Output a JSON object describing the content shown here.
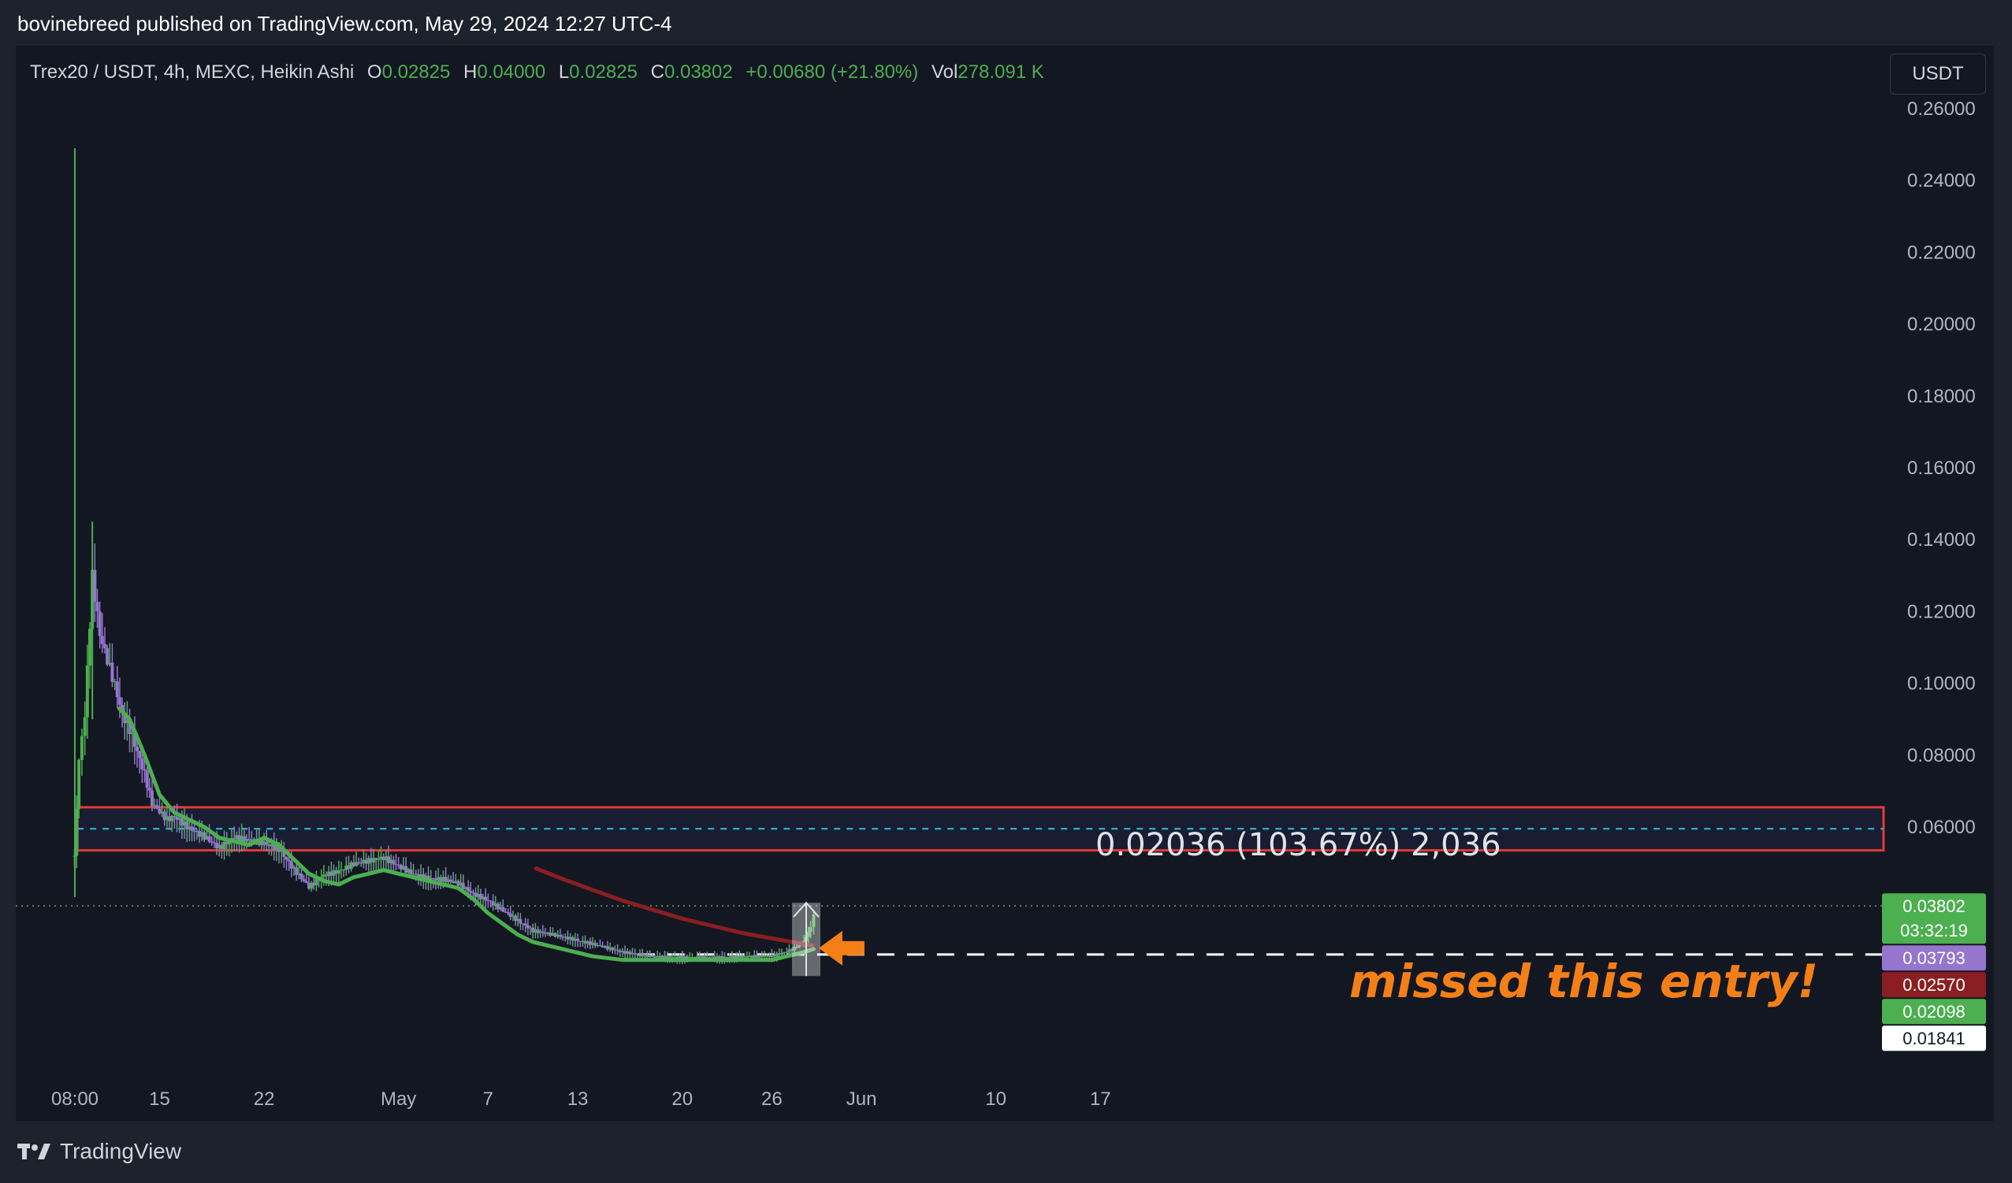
{
  "header": {
    "publish_text": "bovinebreed published on TradingView.com, May 29, 2024 12:27 UTC-4"
  },
  "legend": {
    "symbol": "Trex20 / USDT, 4h, MEXC, Heikin Ashi",
    "o_label": "O",
    "o_value": "0.02825",
    "h_label": "H",
    "h_value": "0.04000",
    "l_label": "L",
    "l_value": "0.02825",
    "c_label": "C",
    "c_value": "0.03802",
    "change": "+0.00680 (+21.80%)",
    "vol_label": "Vol",
    "vol_value": "278.091 K"
  },
  "currency_button": "USDT",
  "footer": {
    "brand": "TradingView"
  },
  "colors": {
    "background": "#131722",
    "up": "#4caf50",
    "down": "#9575cd",
    "ma_fast": "#4caf50",
    "ma_slow": "#8b1e22",
    "zone": "#e53935",
    "annotation": "#f57f17"
  },
  "annotations": {
    "measure": "0.02036 (103.67%) 2,036",
    "missed": "missed this entry!"
  },
  "chart_data": {
    "type": "candlestick",
    "style": "heikin_ashi",
    "symbol": "Trex20 / USDT",
    "interval": "4h",
    "exchange": "MEXC",
    "ylim": [
      0.0,
      0.262
    ],
    "y_ticks": [
      "0.06000",
      "0.08000",
      "0.10000",
      "0.12000",
      "0.14000",
      "0.16000",
      "0.18000",
      "0.20000",
      "0.22000",
      "0.24000",
      "0.26000"
    ],
    "y_tick_values": [
      0.06,
      0.08,
      0.1,
      0.12,
      0.14,
      0.16,
      0.18,
      0.2,
      0.22,
      0.24,
      0.26
    ],
    "x_ticks": [
      {
        "label": "08:00",
        "day": 9.33
      },
      {
        "label": "15",
        "day": 15
      },
      {
        "label": "22",
        "day": 22
      },
      {
        "label": "May",
        "day": 31
      },
      {
        "label": "7",
        "day": 37
      },
      {
        "label": "13",
        "day": 43
      },
      {
        "label": "20",
        "day": 50
      },
      {
        "label": "26",
        "day": 56
      },
      {
        "label": "Jun",
        "day": 62
      },
      {
        "label": "10",
        "day": 71
      },
      {
        "label": "17",
        "day": 78
      }
    ],
    "price_series": [
      [
        9.3,
        0.052
      ],
      [
        9.6,
        0.078
      ],
      [
        10.0,
        0.09
      ],
      [
        10.5,
        0.128
      ],
      [
        11.0,
        0.112
      ],
      [
        11.5,
        0.105
      ],
      [
        12.0,
        0.098
      ],
      [
        12.5,
        0.09
      ],
      [
        13.0,
        0.086
      ],
      [
        13.5,
        0.08
      ],
      [
        14.0,
        0.074
      ],
      [
        14.5,
        0.066
      ],
      [
        15.0,
        0.064
      ],
      [
        15.5,
        0.062
      ],
      [
        16.0,
        0.063
      ],
      [
        17.0,
        0.06
      ],
      [
        18.0,
        0.058
      ],
      [
        19.0,
        0.055
      ],
      [
        20.0,
        0.058
      ],
      [
        21.0,
        0.057
      ],
      [
        22.0,
        0.056
      ],
      [
        23.0,
        0.054
      ],
      [
        24.0,
        0.048
      ],
      [
        25.0,
        0.043
      ],
      [
        26.0,
        0.046
      ],
      [
        27.0,
        0.047
      ],
      [
        28.0,
        0.049
      ],
      [
        29.0,
        0.05
      ],
      [
        30.0,
        0.051
      ],
      [
        31.0,
        0.049
      ],
      [
        32.0,
        0.047
      ],
      [
        33.0,
        0.046
      ],
      [
        34.0,
        0.046
      ],
      [
        35.0,
        0.045
      ],
      [
        36.0,
        0.042
      ],
      [
        37.0,
        0.04
      ],
      [
        38.0,
        0.037
      ],
      [
        39.0,
        0.034
      ],
      [
        40.0,
        0.031
      ],
      [
        41.0,
        0.03
      ],
      [
        42.0,
        0.029
      ],
      [
        43.0,
        0.028
      ],
      [
        44.0,
        0.027
      ],
      [
        45.0,
        0.026
      ],
      [
        46.0,
        0.025
      ],
      [
        48.0,
        0.024
      ],
      [
        50.0,
        0.024
      ],
      [
        52.0,
        0.024
      ],
      [
        54.0,
        0.024
      ],
      [
        56.0,
        0.024
      ],
      [
        57.0,
        0.025
      ],
      [
        58.0,
        0.027
      ],
      [
        58.6,
        0.032
      ],
      [
        59.0,
        0.038
      ]
    ],
    "ma_fast": [
      [
        12.3,
        0.093
      ],
      [
        13.0,
        0.09
      ],
      [
        14.0,
        0.08
      ],
      [
        15.0,
        0.069
      ],
      [
        16.0,
        0.064
      ],
      [
        17.0,
        0.062
      ],
      [
        18.0,
        0.06
      ],
      [
        19.0,
        0.057
      ],
      [
        20.0,
        0.056
      ],
      [
        21.0,
        0.055
      ],
      [
        22.0,
        0.057
      ],
      [
        23.0,
        0.055
      ],
      [
        24.0,
        0.051
      ],
      [
        25.0,
        0.047
      ],
      [
        26.0,
        0.045
      ],
      [
        27.0,
        0.044
      ],
      [
        28.0,
        0.046
      ],
      [
        29.0,
        0.047
      ],
      [
        30.0,
        0.048
      ],
      [
        31.0,
        0.047
      ],
      [
        32.0,
        0.046
      ],
      [
        33.0,
        0.045
      ],
      [
        34.0,
        0.044
      ],
      [
        35.0,
        0.043
      ],
      [
        36.0,
        0.04
      ],
      [
        37.0,
        0.036
      ],
      [
        38.0,
        0.033
      ],
      [
        39.0,
        0.03
      ],
      [
        40.0,
        0.028
      ],
      [
        41.0,
        0.027
      ],
      [
        42.0,
        0.026
      ],
      [
        43.0,
        0.025
      ],
      [
        44.0,
        0.024
      ],
      [
        46.0,
        0.023
      ],
      [
        48.0,
        0.023
      ],
      [
        50.0,
        0.023
      ],
      [
        52.0,
        0.023
      ],
      [
        54.0,
        0.023
      ],
      [
        56.0,
        0.023
      ],
      [
        57.0,
        0.024
      ],
      [
        58.0,
        0.025
      ],
      [
        58.8,
        0.026
      ]
    ],
    "ma_slow": [
      [
        40.2,
        0.0485
      ],
      [
        42.0,
        0.0455
      ],
      [
        44.0,
        0.0425
      ],
      [
        46.0,
        0.0395
      ],
      [
        48.0,
        0.037
      ],
      [
        50.0,
        0.0345
      ],
      [
        52.0,
        0.0325
      ],
      [
        54.0,
        0.0305
      ],
      [
        56.0,
        0.029
      ],
      [
        58.0,
        0.0275
      ],
      [
        58.7,
        0.027
      ]
    ],
    "resistance_zone": {
      "top": 0.0655,
      "bottom": 0.0535,
      "mid": 0.0595
    },
    "entry_level": 0.0245,
    "last_price_level": 0.03802,
    "measure": {
      "from": 0.0185,
      "to": 0.0389
    },
    "price_badges": [
      {
        "value": "0.03802",
        "sub": "03:32:19",
        "price": 0.03802,
        "bg": "#4caf50",
        "fg": "#ffffff"
      },
      {
        "value": "0.03793",
        "price": 0.03793,
        "bg": "#9575cd",
        "fg": "#ffffff"
      },
      {
        "value": "0.02570",
        "price": 0.0257,
        "bg": "#8b1e22",
        "fg": "#ffffff"
      },
      {
        "value": "0.02098",
        "price": 0.02098,
        "bg": "#4caf50",
        "fg": "#ffffff"
      },
      {
        "value": "0.01841",
        "price": 0.01841,
        "bg": "#ffffff",
        "fg": "#131722"
      }
    ]
  }
}
